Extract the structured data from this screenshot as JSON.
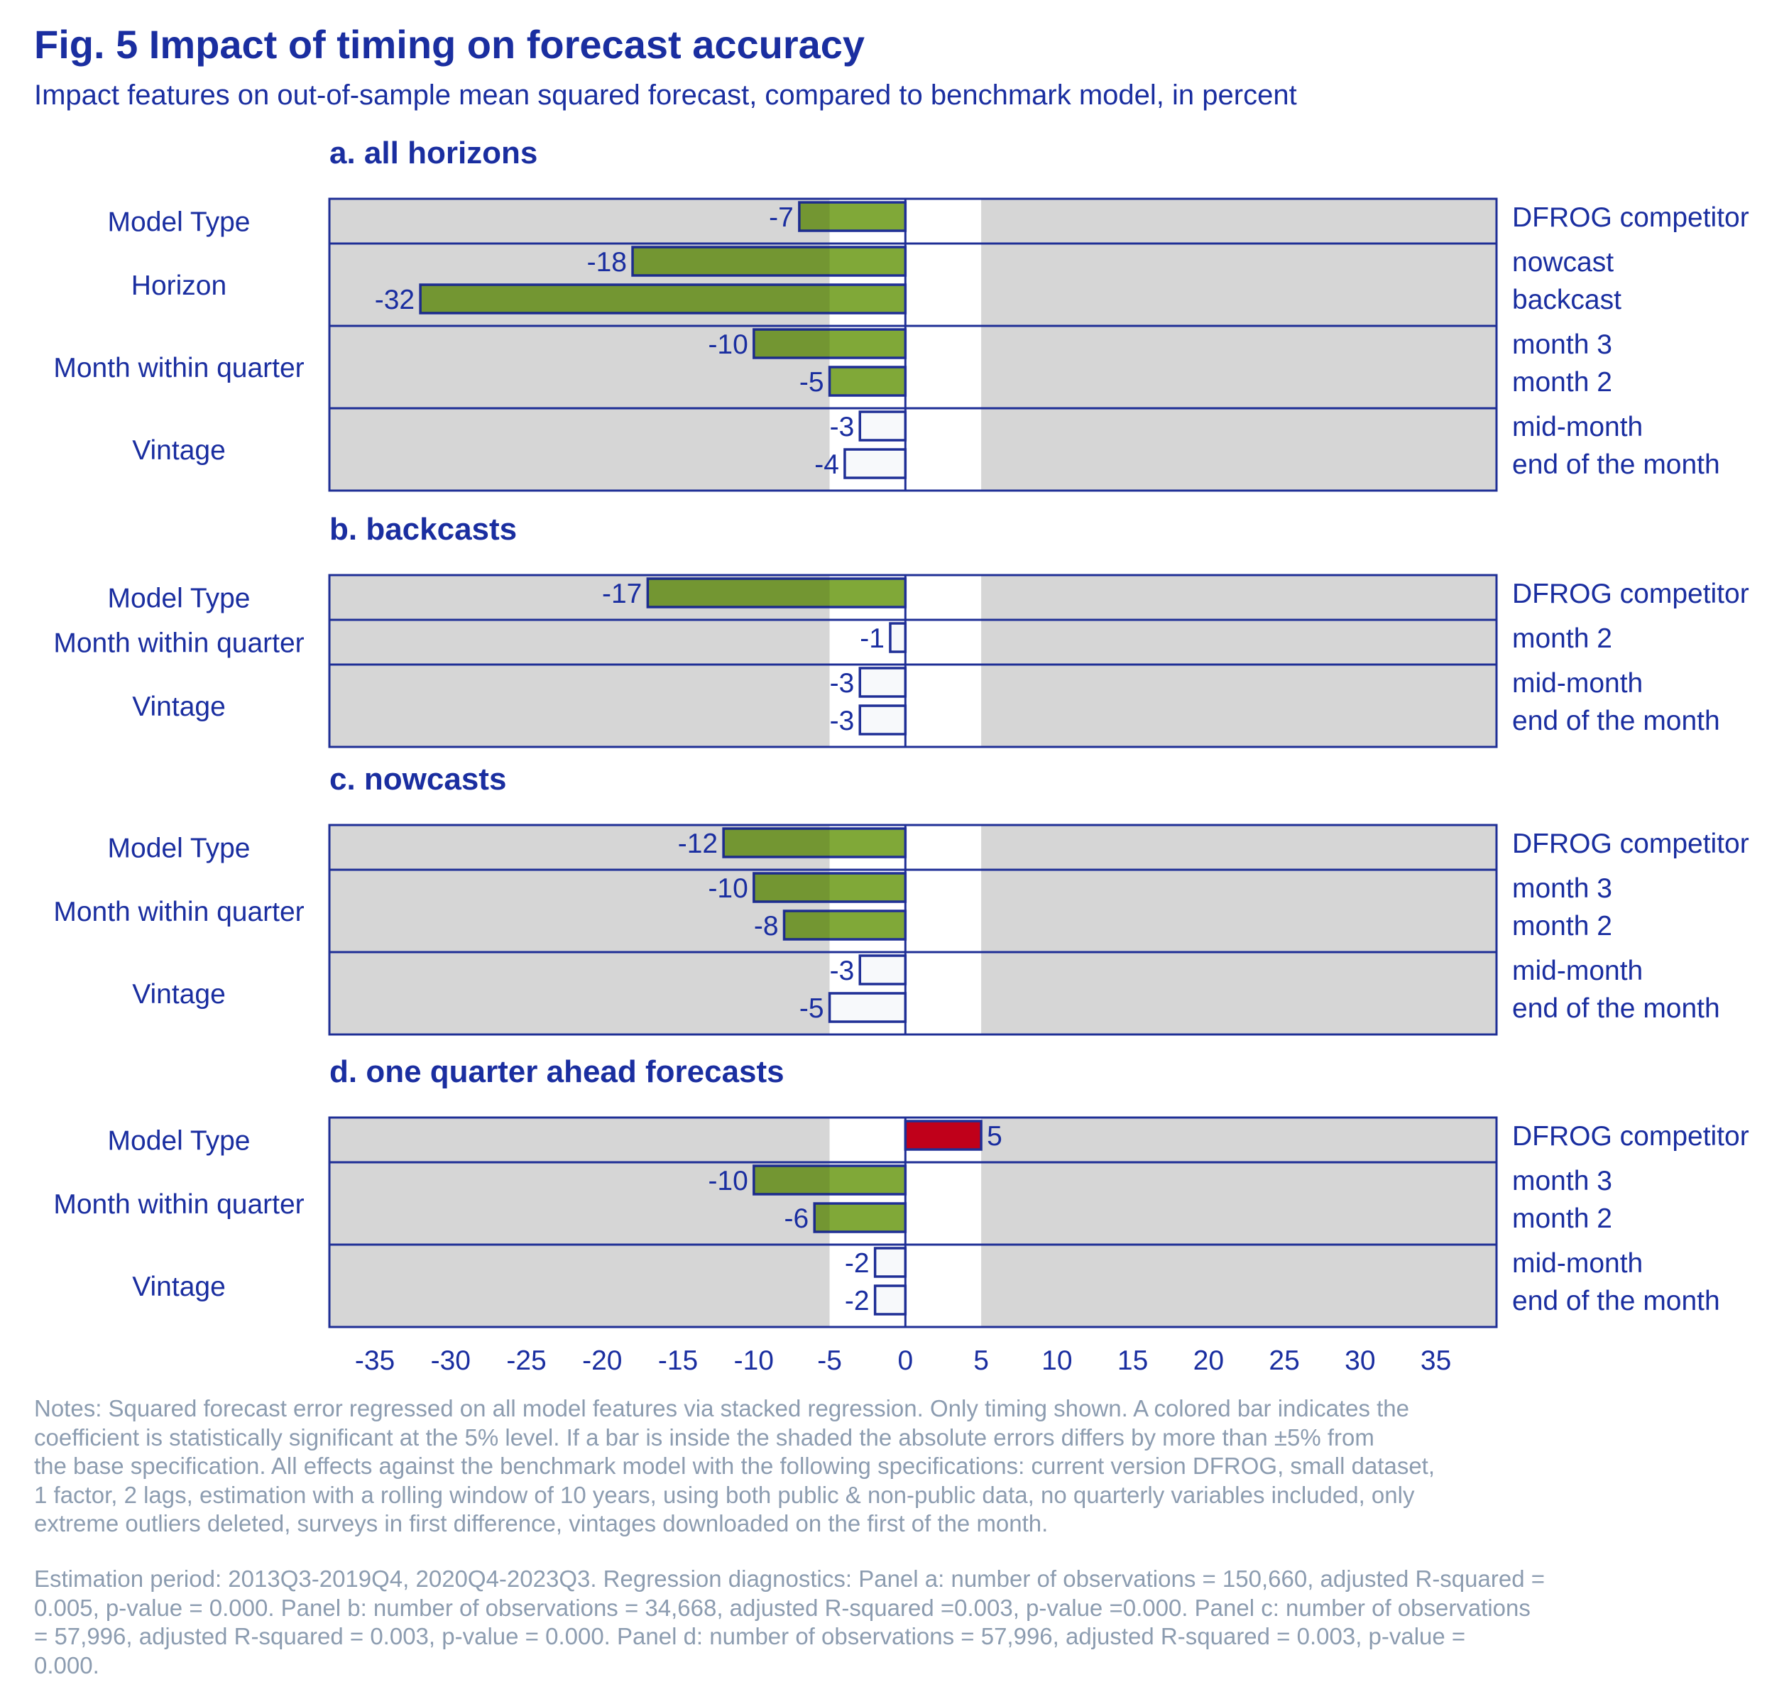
{
  "title": "Fig. 5 Impact of timing on forecast accuracy",
  "subtitle": "Impact features on out-of-sample mean squared forecast, compared to benchmark model, in percent",
  "colors": {
    "text": "#1a2ea0",
    "panel_bg": "#d6d6d6",
    "band": "#ffffff",
    "negative_significant": "#80a838",
    "positive_significant": "#c0001a",
    "not_significant": "#f7f9fb",
    "border": "#1f2f96",
    "notes": "#8c9cb0"
  },
  "chart_data": {
    "type": "bar",
    "orientation": "horizontal",
    "xlim": [
      -38,
      39
    ],
    "x_ticks": [
      -35,
      -30,
      -25,
      -20,
      -15,
      -10,
      -5,
      0,
      5,
      10,
      15,
      20,
      25,
      30,
      35
    ],
    "x_tick_labels": [
      "-35",
      "-30",
      "-25",
      "-20",
      "-15",
      "-10",
      "-5",
      "0",
      "5",
      "10",
      "15",
      "20",
      "25",
      "30",
      "35"
    ],
    "shaded_band": [
      -5,
      5
    ],
    "panels": [
      {
        "title": "a. all horizons",
        "groups": [
          {
            "label": "Model Type",
            "bars": [
              {
                "category": "DFROG competitor",
                "value": -7,
                "label": "-7",
                "significant": true
              }
            ]
          },
          {
            "label": "Horizon",
            "bars": [
              {
                "category": "nowcast",
                "value": -18,
                "label": "-18",
                "significant": true
              },
              {
                "category": "backcast",
                "value": -32,
                "label": "-32",
                "significant": true
              }
            ]
          },
          {
            "label": "Month within quarter",
            "bars": [
              {
                "category": "month 3",
                "value": -10,
                "label": "-10",
                "significant": true
              },
              {
                "category": "month 2",
                "value": -5,
                "label": "-5",
                "significant": true
              }
            ]
          },
          {
            "label": "Vintage",
            "bars": [
              {
                "category": "mid-month",
                "value": -3,
                "label": "-3",
                "significant": false
              },
              {
                "category": "end of the month",
                "value": -4,
                "label": "-4",
                "significant": false
              }
            ]
          }
        ]
      },
      {
        "title": "b. backcasts",
        "groups": [
          {
            "label": "Model Type",
            "bars": [
              {
                "category": "DFROG competitor",
                "value": -17,
                "label": "-17",
                "significant": true
              }
            ]
          },
          {
            "label": "Month within quarter",
            "bars": [
              {
                "category": "month 2",
                "value": -1,
                "label": "-1",
                "significant": false
              }
            ]
          },
          {
            "label": "Vintage",
            "bars": [
              {
                "category": "mid-month",
                "value": -3,
                "label": "-3",
                "significant": false
              },
              {
                "category": "end of the month",
                "value": -3,
                "label": "-3",
                "significant": false
              }
            ]
          }
        ]
      },
      {
        "title": "c. nowcasts",
        "groups": [
          {
            "label": "Model Type",
            "bars": [
              {
                "category": "DFROG competitor",
                "value": -12,
                "label": "-12",
                "significant": true
              }
            ]
          },
          {
            "label": "Month within quarter",
            "bars": [
              {
                "category": "month 3",
                "value": -10,
                "label": "-10",
                "significant": true
              },
              {
                "category": "month 2",
                "value": -8,
                "label": "-8",
                "significant": true
              }
            ]
          },
          {
            "label": "Vintage",
            "bars": [
              {
                "category": "mid-month",
                "value": -3,
                "label": "-3",
                "significant": false
              },
              {
                "category": "end of the month",
                "value": -5,
                "label": "-5",
                "significant": false
              }
            ]
          }
        ]
      },
      {
        "title": "d. one quarter ahead forecasts",
        "groups": [
          {
            "label": "Model Type",
            "bars": [
              {
                "category": "DFROG competitor",
                "value": 5,
                "label": "5",
                "significant": true
              }
            ]
          },
          {
            "label": "Month within quarter",
            "bars": [
              {
                "category": "month 3",
                "value": -10,
                "label": "-10",
                "significant": true
              },
              {
                "category": "month 2",
                "value": -6,
                "label": "-6",
                "significant": true
              }
            ]
          },
          {
            "label": "Vintage",
            "bars": [
              {
                "category": "mid-month",
                "value": -2,
                "label": "-2",
                "significant": false
              },
              {
                "category": "end of the month",
                "value": -2,
                "label": "-2",
                "significant": false
              }
            ]
          }
        ]
      }
    ]
  },
  "notes": "Notes: Squared forecast error regressed on all model features via stacked regression. Only timing shown. A colored bar indicates the\ncoefficient is statistically significant at the 5% level. If a bar is inside the shaded the absolute errors differs by more than ±5% from\nthe base specification. All effects against the benchmark model with the following specifications: current version DFROG, small dataset,\n1 factor, 2 lags, estimation with a rolling window of 10 years, using both public & non-public data, no quarterly variables included, only\nextreme outliers deleted, surveys in first difference, vintages downloaded on the first of the month.",
  "estimation": " Estimation period: 2013Q3-2019Q4, 2020Q4-2023Q3. Regression diagnostics: Panel a: number of observations = 150,660, adjusted R-squared =\n0.005, p-value = 0.000. Panel b: number of observations = 34,668, adjusted R-squared =0.003, p-value =0.000. Panel c: number of observations\n= 57,996, adjusted R-squared = 0.003, p-value = 0.000. Panel d: number of observations = 57,996, adjusted R-squared = 0.003, p-value =\n0.000."
}
